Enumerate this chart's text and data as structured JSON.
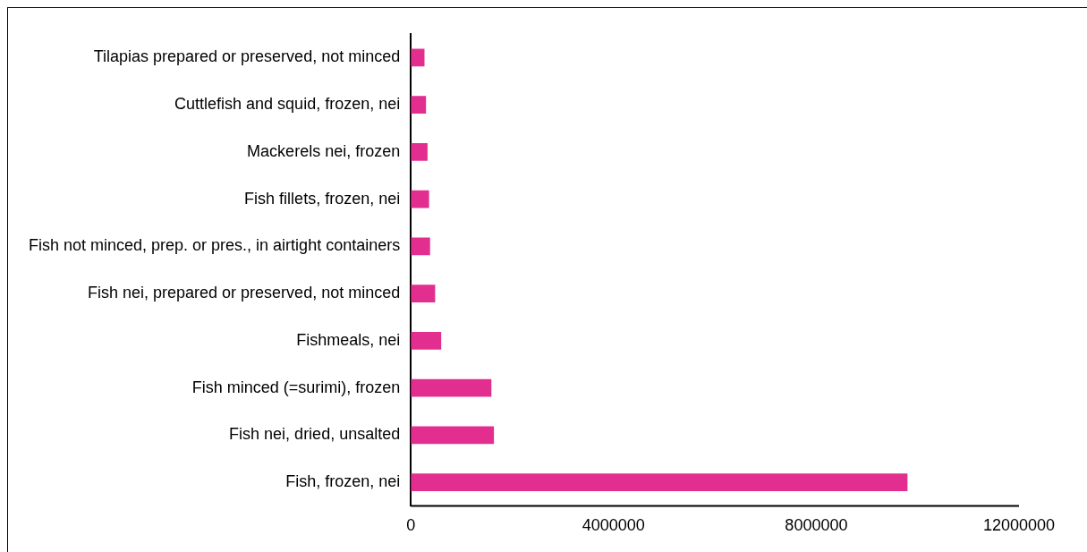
{
  "chart_data": {
    "type": "bar",
    "orientation": "horizontal",
    "categories": [
      "Tilapias prepared or preserved, not minced",
      "Cuttlefish and squid, frozen, nei",
      "Mackerels nei, frozen",
      "Fish fillets, frozen, nei",
      "Fish not minced, prep. or pres., in airtight containers",
      "Fish nei, prepared or preserved, not minced",
      "Fishmeals, nei",
      "Fish minced (=surimi), frozen",
      "Fish nei, dried, unsalted",
      "Fish, frozen, nei"
    ],
    "values": [
      270000,
      300000,
      330000,
      360000,
      380000,
      480000,
      600000,
      1590000,
      1640000,
      9800000
    ],
    "color": "#e22f8f",
    "xlim": [
      0,
      12000000
    ],
    "xticks": [
      0,
      4000000,
      8000000,
      12000000
    ],
    "grid": false,
    "legend": false
  }
}
